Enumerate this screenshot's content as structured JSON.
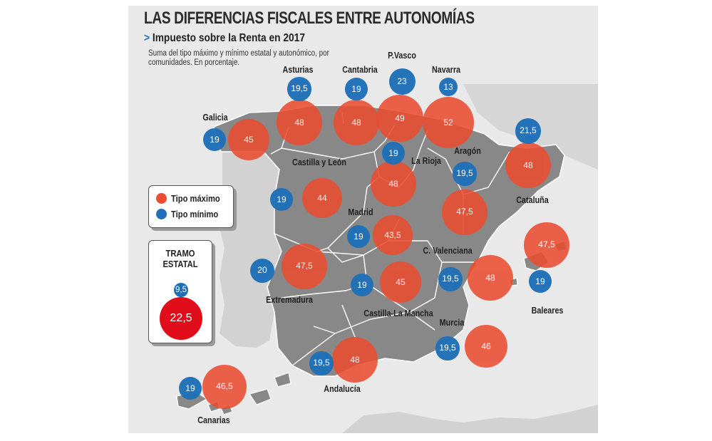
{
  "title": "LAS DIFERENCIAS FISCALES ENTRE AUTONOMÍAS",
  "subtitle_marker": ">",
  "subtitle": "Impuesto sobre la Renta en 2017",
  "note": "Suma del tipo máximo y mínimo estatal y autonómico, por comunidades. En porcentaje.",
  "colors": {
    "tipo_maximo": "#ea4d31",
    "tipo_minimo": "#1f70b8",
    "background": "#e9e9e9"
  },
  "legend": {
    "max_label": "Tipo máximo",
    "min_label": "Tipo mínimo"
  },
  "tramo_estatal": {
    "title": "TRAMO ESTATAL",
    "min": "9,5",
    "max": "22,5"
  },
  "regions": [
    {
      "name": "Galicia",
      "min": "19",
      "max": "45"
    },
    {
      "name": "Asturias",
      "min": "19,5",
      "max": "48"
    },
    {
      "name": "Cantabria",
      "min": "19",
      "max": "48"
    },
    {
      "name": "P.Vasco",
      "min": "23",
      "max": "49"
    },
    {
      "name": "Navarra",
      "min": "13",
      "max": "52"
    },
    {
      "name": "Cataluña",
      "min": "21,5",
      "max": "48"
    },
    {
      "name": "La Rioja",
      "min": "19",
      "max": "48"
    },
    {
      "name": "Aragón",
      "min": "19,5",
      "max": "47,5"
    },
    {
      "name": "Castilla y León",
      "min": "19",
      "max": "44"
    },
    {
      "name": "Madrid",
      "min": "19",
      "max": "43,5"
    },
    {
      "name": "C. Valenciana",
      "min": "19,5",
      "max": "48"
    },
    {
      "name": "Baleares",
      "min": "19",
      "max": "47,5"
    },
    {
      "name": "Extremadura",
      "min": "20",
      "max": "47,5"
    },
    {
      "name": "Castilla-La Mancha",
      "min": "19",
      "max": "45"
    },
    {
      "name": "Murcia",
      "min": "19,5",
      "max": "46"
    },
    {
      "name": "Andalucía",
      "min": "19,5",
      "max": "48"
    },
    {
      "name": "Canarias",
      "min": "19",
      "max": "46,5"
    }
  ]
}
